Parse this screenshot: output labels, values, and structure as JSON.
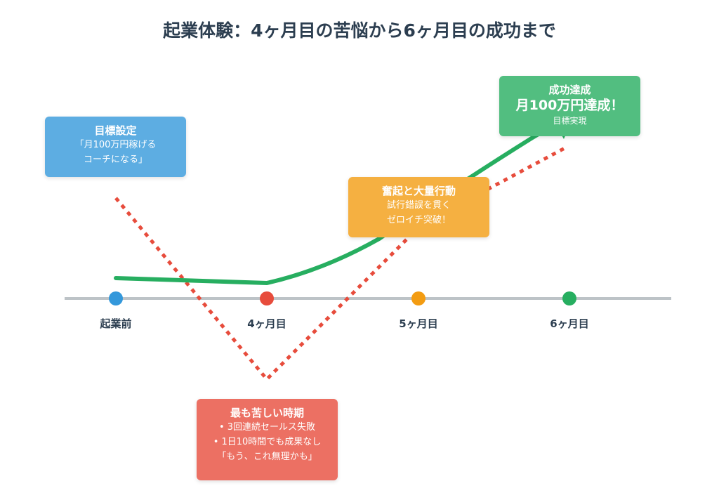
{
  "title": "起業体験：4ヶ月目の苦悩から6ヶ月目の成功まで",
  "stages": [
    {
      "label": "起業前",
      "color": "#3498db"
    },
    {
      "label": "4ヶ月目",
      "color": "#e74c3c"
    },
    {
      "label": "5ヶ月目",
      "color": "#f39c12"
    },
    {
      "label": "6ヶ月目",
      "color": "#27ae60"
    }
  ],
  "boxes": {
    "goal": {
      "heading": "目標設定",
      "lines": [
        "「月100万円稼げる",
        "コーチになる」"
      ],
      "color": "#5dade2"
    },
    "hardest": {
      "heading": "最も苦しい時期",
      "lines": [
        "• 3回連続セールス失敗",
        "• 1日10時間でも成果なし",
        "「もう、これ無理かも」"
      ],
      "color": "#ec7063"
    },
    "action": {
      "heading": "奮起と大量行動",
      "lines": [
        "試行錯誤を貫く",
        "ゼロイチ突破！"
      ],
      "color": "#f5b041"
    },
    "success": {
      "heading": "成功達成",
      "subheading": "月100万円達成！",
      "lines": [
        "目標実現"
      ],
      "color": "#52be80"
    }
  },
  "colors": {
    "green_line": "#27ae60",
    "red_dotted_line": "#e74c3c",
    "timeline": "#bdc3c7",
    "title_text": "#2c3e50"
  }
}
